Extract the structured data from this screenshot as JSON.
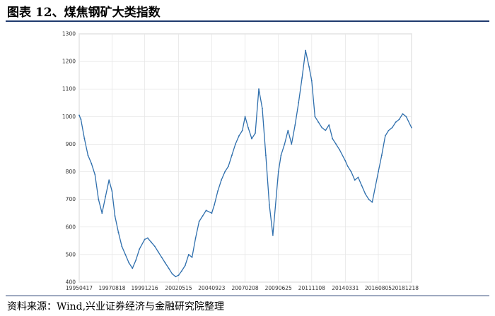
{
  "figure": {
    "title": "图表 12、煤焦钢矿大类指数",
    "source": "资料来源：Wind,兴业证券经济与金融研究院整理"
  },
  "chart_data": {
    "type": "line",
    "title": "",
    "xlabel": "",
    "ylabel": "",
    "x_tick_labels": [
      "19950417",
      "19970818",
      "19991216",
      "20020515",
      "20040923",
      "20070208",
      "20090625",
      "20111108",
      "20140331",
      "20160805",
      "20181218"
    ],
    "y_ticks": [
      400,
      500,
      600,
      700,
      800,
      900,
      1000,
      1100,
      1200,
      1300
    ],
    "ylim": [
      400,
      1300
    ],
    "grid": true,
    "line_color": "#2f6fad",
    "series": [
      {
        "x": [
          "19950417",
          "19950601",
          "19950901",
          "19951201",
          "19960301",
          "19960601",
          "19960901",
          "19961201",
          "19970301",
          "19970601",
          "19970818",
          "19971101",
          "19980201",
          "19980501",
          "19980801",
          "19981101",
          "19990201",
          "19990501",
          "19990801",
          "19991216",
          "20000301",
          "20000601",
          "20000901",
          "20001201",
          "20010301",
          "20010601",
          "20010901",
          "20011201",
          "20020301",
          "20020515",
          "20020801",
          "20021101",
          "20030201",
          "20030501",
          "20030801",
          "20031101",
          "20040201",
          "20040501",
          "20040923",
          "20041201",
          "20050301",
          "20050601",
          "20050901",
          "20051201",
          "20060301",
          "20060601",
          "20060901",
          "20061201",
          "20070208",
          "20070501",
          "20070801",
          "20071101",
          "20080201",
          "20080501",
          "20080801",
          "20081101",
          "20090201",
          "20090625",
          "20090901",
          "20091201",
          "20100301",
          "20100601",
          "20100901",
          "20101201",
          "20110301",
          "20110601",
          "20110901",
          "20111108",
          "20120201",
          "20120501",
          "20120801",
          "20121101",
          "20130201",
          "20130501",
          "20130801",
          "20131101",
          "20140331",
          "20140601",
          "20140901",
          "20141201",
          "20150301",
          "20150601",
          "20150901",
          "20151201",
          "20160301",
          "20160805",
          "20161101",
          "20170201",
          "20170501",
          "20170801",
          "20171101",
          "20180201",
          "20180501",
          "20180801",
          "20181218"
        ],
        "values": [
          1005,
          990,
          920,
          860,
          830,
          790,
          700,
          650,
          710,
          770,
          730,
          640,
          580,
          530,
          500,
          470,
          450,
          480,
          520,
          555,
          560,
          545,
          530,
          510,
          490,
          470,
          450,
          430,
          420,
          425,
          440,
          460,
          500,
          490,
          560,
          620,
          640,
          660,
          650,
          680,
          730,
          770,
          800,
          820,
          860,
          900,
          930,
          950,
          1000,
          960,
          920,
          940,
          1100,
          1030,
          860,
          680,
          570,
          800,
          860,
          900,
          950,
          900,
          970,
          1050,
          1140,
          1240,
          1180,
          1130,
          1000,
          980,
          960,
          950,
          970,
          920,
          900,
          880,
          840,
          820,
          800,
          770,
          780,
          750,
          720,
          700,
          690,
          800,
          860,
          930,
          950,
          960,
          980,
          990,
          1010,
          1000,
          960
        ]
      }
    ]
  }
}
